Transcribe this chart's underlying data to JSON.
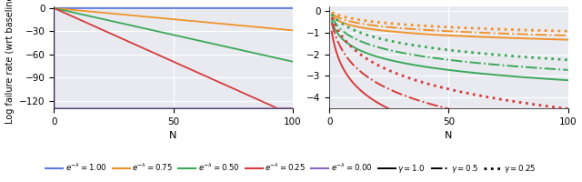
{
  "left_plot": {
    "xlabel": "N",
    "ylabel": "Log failure rate (wrt baseline)",
    "xlim": [
      0,
      100
    ],
    "ylim": [
      -130,
      2
    ],
    "yticks": [
      0,
      -30,
      -60,
      -90,
      -120
    ],
    "xticks": [
      0,
      50,
      100
    ],
    "bg_color": "#e8eaf0",
    "lines": [
      {
        "color": "#5c7be0",
        "e_neg_lam": 1.0
      },
      {
        "color": "#f0922b",
        "e_neg_lam": 0.75
      },
      {
        "color": "#3ba858",
        "e_neg_lam": 0.5
      },
      {
        "color": "#d63b3b",
        "e_neg_lam": 0.25
      },
      {
        "color": "#8b63c7",
        "e_neg_lam": 0.0
      }
    ]
  },
  "right_plot": {
    "xlabel": "N",
    "xlim": [
      0,
      100
    ],
    "ylim": [
      -4.5,
      0.2
    ],
    "yticks": [
      0,
      -1,
      -2,
      -3,
      -4
    ],
    "xticks": [
      0,
      50,
      100
    ],
    "bg_color": "#e8eaf0",
    "gamma_lines": [
      {
        "gamma": 1.0,
        "linestyle": "solid",
        "lw": 1.4
      },
      {
        "gamma": 0.5,
        "linestyle": "dashdot",
        "lw": 1.4
      },
      {
        "gamma": 0.25,
        "linestyle": "dotted",
        "lw": 2.0
      }
    ],
    "colors": [
      {
        "color": "#f0922b",
        "e_neg_lam": 0.75
      },
      {
        "color": "#3ba858",
        "e_neg_lam": 0.5
      },
      {
        "color": "#d63b3b",
        "e_neg_lam": 0.25
      }
    ]
  },
  "legend": {
    "line_colors": [
      {
        "label": "$e^{-\\lambda}=1.00$",
        "color": "#5c7be0"
      },
      {
        "label": "$e^{-\\lambda}=0.75$",
        "color": "#f0922b"
      },
      {
        "label": "$e^{-\\lambda}=0.50$",
        "color": "#3ba858"
      },
      {
        "label": "$e^{-\\lambda}=0.25$",
        "color": "#d63b3b"
      },
      {
        "label": "$e^{-\\lambda}=0.00$",
        "color": "#8b63c7"
      }
    ],
    "gamma_styles": [
      {
        "label": "$\\gamma=1.0$",
        "linestyle": "solid",
        "color": "black",
        "lw": 1.4
      },
      {
        "label": "$\\gamma=0.5$",
        "linestyle": "dashdot",
        "color": "black",
        "lw": 1.4
      },
      {
        "label": "$\\gamma=0.25$",
        "linestyle": "dotted",
        "color": "black",
        "lw": 2.0
      }
    ]
  }
}
